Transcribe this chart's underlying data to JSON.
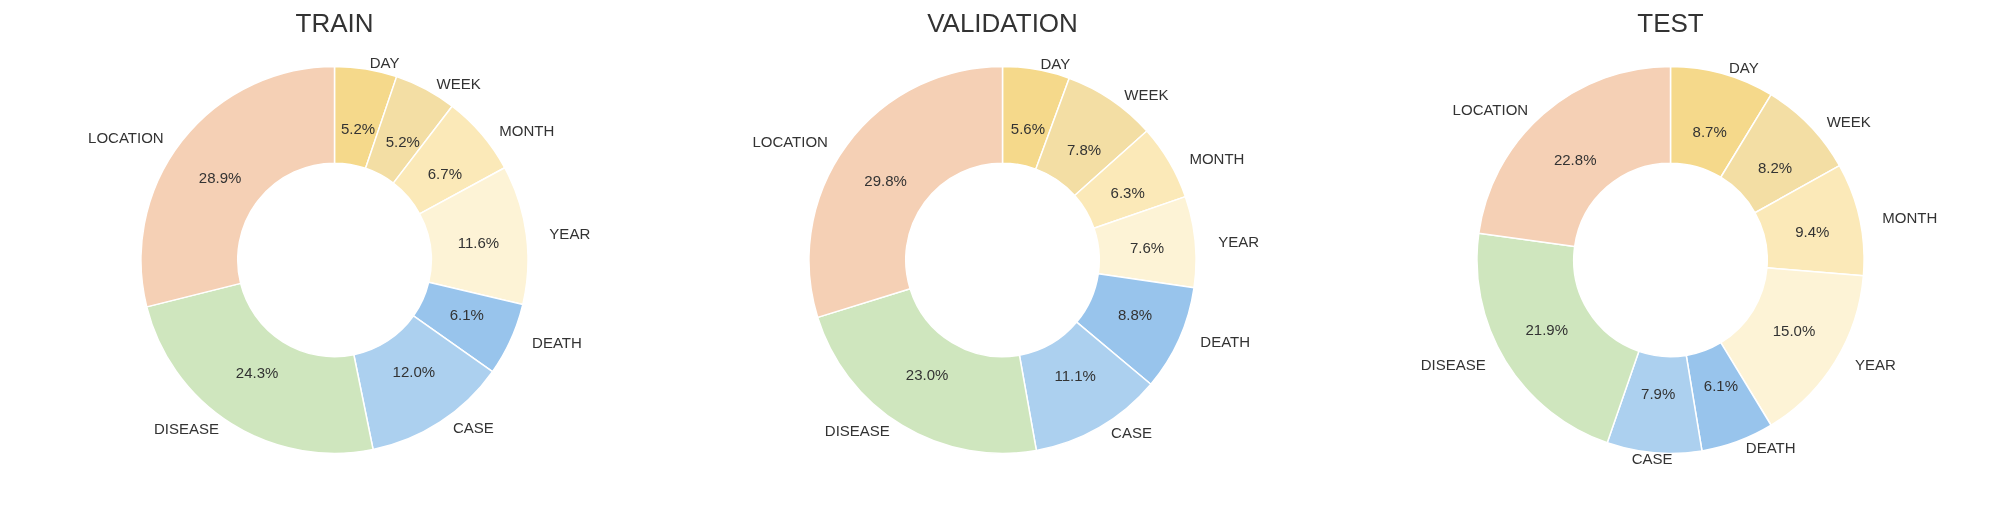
{
  "chart_data": [
    {
      "type": "donut",
      "title": "TRAIN",
      "categories": [
        "DAY",
        "WEEK",
        "MONTH",
        "YEAR",
        "DEATH",
        "CASE",
        "DISEASE",
        "LOCATION"
      ],
      "values": [
        5.2,
        5.2,
        6.7,
        11.6,
        6.1,
        12.0,
        24.3,
        28.9
      ],
      "value_labels": [
        "5.2%",
        "5.2%",
        "6.7%",
        "11.6%",
        "6.1%",
        "12.0%",
        "24.3%",
        "28.9%"
      ],
      "colors": [
        "#f5d98b",
        "#f3dea4",
        "#fbe9b8",
        "#fdf3d6",
        "#98c4ec",
        "#acd0ef",
        "#cfe6be",
        "#f5d0b5"
      ]
    },
    {
      "type": "donut",
      "title": "VALIDATION",
      "categories": [
        "DAY",
        "WEEK",
        "MONTH",
        "YEAR",
        "DEATH",
        "CASE",
        "DISEASE",
        "LOCATION"
      ],
      "values": [
        5.6,
        7.8,
        6.3,
        7.6,
        8.8,
        11.1,
        23.0,
        29.8
      ],
      "value_labels": [
        "5.6%",
        "7.8%",
        "6.3%",
        "7.6%",
        "8.8%",
        "11.1%",
        "23.0%",
        "29.8%"
      ],
      "colors": [
        "#f5d98b",
        "#f3dea4",
        "#fbe9b8",
        "#fdf3d6",
        "#98c4ec",
        "#acd0ef",
        "#cfe6be",
        "#f5d0b5"
      ]
    },
    {
      "type": "donut",
      "title": "TEST",
      "categories": [
        "DAY",
        "WEEK",
        "MONTH",
        "YEAR",
        "DEATH",
        "CASE",
        "DISEASE",
        "LOCATION"
      ],
      "values": [
        8.7,
        8.2,
        9.4,
        15.0,
        6.1,
        7.9,
        21.9,
        22.8
      ],
      "value_labels": [
        "8.7%",
        "8.2%",
        "9.4%",
        "15.0%",
        "6.1%",
        "7.9%",
        "21.9%",
        "22.8%"
      ],
      "colors": [
        "#f5d98b",
        "#f3dea4",
        "#fbe9b8",
        "#fdf3d6",
        "#98c4ec",
        "#acd0ef",
        "#cfe6be",
        "#f5d0b5"
      ]
    }
  ]
}
